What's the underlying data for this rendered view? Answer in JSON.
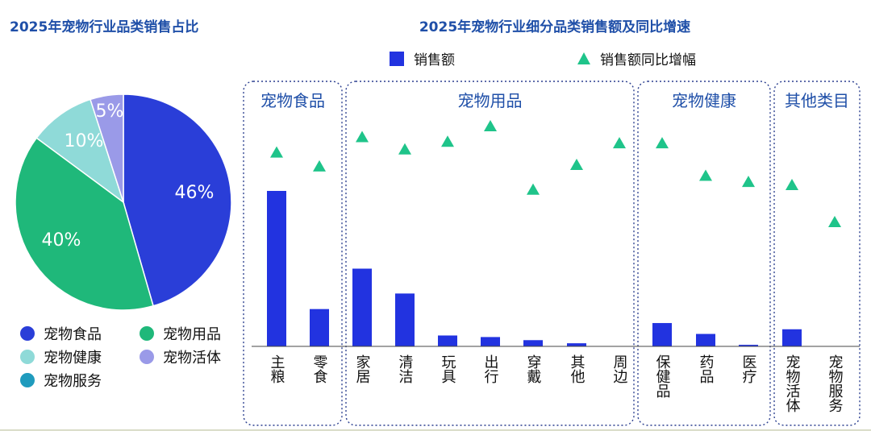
{
  "chart_data": [
    {
      "type": "pie",
      "title": "2025年宠物行业品类销售占比",
      "slices": [
        {
          "name": "宠物食品",
          "value": 46,
          "label": "46%",
          "color": "#2a3ed8"
        },
        {
          "name": "宠物用品",
          "value": 40,
          "label": "40%",
          "color": "#1fb87a"
        },
        {
          "name": "宠物健康",
          "value": 10,
          "label": "10%",
          "color": "#8fdad8"
        },
        {
          "name": "宠物活体",
          "value": 5,
          "label": "5%",
          "color": "#9a9ae8"
        },
        {
          "name": "宠物服务",
          "value": 0,
          "label": "",
          "color": "#1f9bbd"
        }
      ],
      "legend": [
        {
          "name": "宠物食品",
          "color": "#2a3ed8"
        },
        {
          "name": "宠物用品",
          "color": "#1fb87a"
        },
        {
          "name": "宠物健康",
          "color": "#8fdad8"
        },
        {
          "name": "宠物活体",
          "color": "#9a9ae8"
        },
        {
          "name": "宠物服务",
          "color": "#1f9bbd"
        }
      ]
    },
    {
      "type": "bar",
      "title": "2025年宠物行业细分品类销售额及同比增速",
      "legend": {
        "bar": "销售额",
        "marker": "销售额同比增幅"
      },
      "groups": [
        {
          "name": "宠物食品",
          "categories": [
            "主粮",
            "零食"
          ]
        },
        {
          "name": "宠物用品",
          "categories": [
            "家居",
            "清洁",
            "玩具",
            "出行",
            "穿戴",
            "其他",
            "周边"
          ]
        },
        {
          "name": "宠物健康",
          "categories": [
            "保健品",
            "药品",
            "医疗"
          ]
        },
        {
          "name": "其他类目",
          "categories": [
            "宠物活体",
            "宠物服务"
          ]
        }
      ],
      "categories": [
        "主粮",
        "零食",
        "家居",
        "清洁",
        "玩具",
        "出行",
        "穿戴",
        "其他",
        "周边",
        "保健品",
        "药品",
        "医疗",
        "宠物活体",
        "宠物服务"
      ],
      "series": [
        {
          "name": "销售额",
          "values": [
            100,
            24,
            50,
            34,
            7,
            6,
            4,
            2,
            0,
            15,
            8,
            1,
            11,
            0
          ]
        },
        {
          "name": "销售额同比增幅",
          "values": [
            57,
            48,
            67,
            59,
            64,
            74,
            33,
            49,
            63,
            63,
            42,
            38,
            36,
            12
          ]
        }
      ],
      "bar_color": "#2233e0",
      "marker_color": "#1fc48a"
    }
  ]
}
